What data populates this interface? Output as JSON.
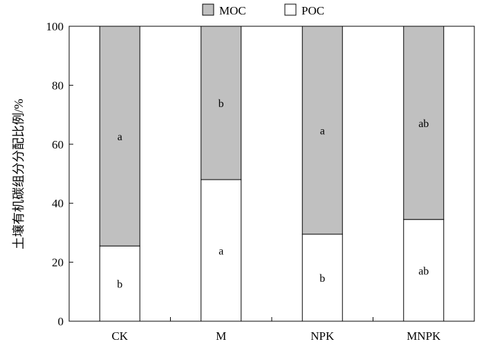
{
  "chart_data": {
    "type": "bar",
    "stacked": true,
    "categories": [
      "CK",
      "M",
      "NPK",
      "MNPK"
    ],
    "series": [
      {
        "name": "POC",
        "values": [
          25.5,
          48,
          29.5,
          34.5
        ],
        "labels": [
          "b",
          "a",
          "b",
          "ab"
        ],
        "color": "#ffffff"
      },
      {
        "name": "MOC",
        "values": [
          74.5,
          52,
          70.5,
          65.5
        ],
        "labels": [
          "a",
          "b",
          "a",
          "ab"
        ],
        "color": "#c0c0c0"
      }
    ],
    "legend_order": [
      "MOC",
      "POC"
    ],
    "legend_position": "top",
    "ylabel": "土壤有机碳组分分配比例/%",
    "xlabel": "",
    "ylim": [
      0,
      100
    ],
    "yticks": [
      0,
      20,
      40,
      60,
      80,
      100
    ],
    "grid": false
  }
}
